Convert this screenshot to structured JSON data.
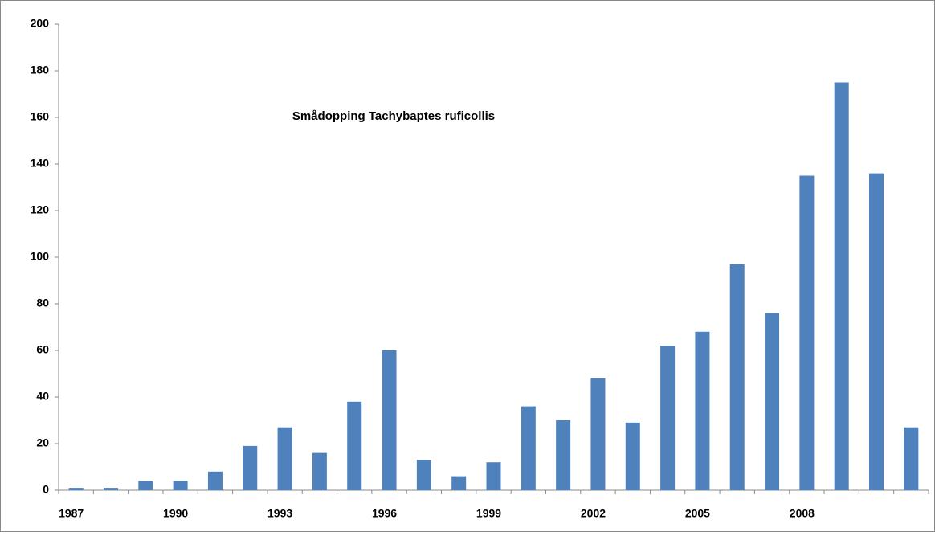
{
  "chart_data": {
    "type": "bar",
    "title": "Smådopping Tachybaptes  ruficollis",
    "categories": [
      "1987",
      null,
      null,
      "1990",
      null,
      null,
      "1993",
      null,
      null,
      "1996",
      null,
      null,
      "1999",
      null,
      null,
      "2002",
      null,
      null,
      "2005",
      null,
      null,
      "2008",
      null,
      null,
      null
    ],
    "values": [
      1,
      1,
      4,
      4,
      8,
      19,
      27,
      16,
      38,
      60,
      13,
      6,
      12,
      36,
      30,
      48,
      29,
      62,
      68,
      97,
      76,
      135,
      175,
      136,
      27
    ],
    "color": "#4f81bd",
    "ylim": [
      0,
      200
    ],
    "yticks": [
      0,
      20,
      40,
      60,
      80,
      100,
      120,
      140,
      160,
      180,
      200
    ],
    "grid": false
  }
}
